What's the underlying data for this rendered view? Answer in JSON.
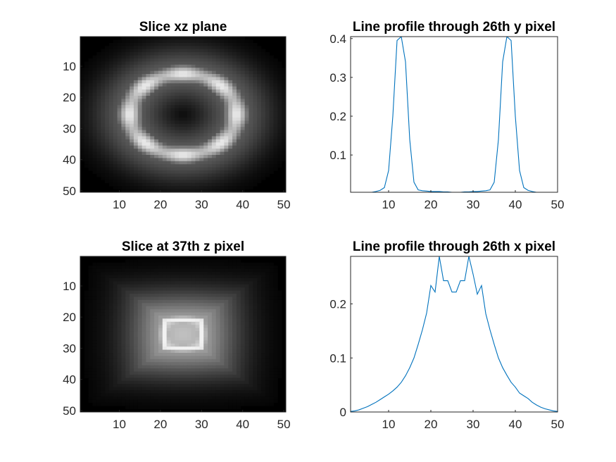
{
  "chart_data": [
    {
      "id": "img1",
      "type": "heatmap",
      "title": "Slice xz plane",
      "colormap": "gray",
      "xlim": [
        0.5,
        50.5
      ],
      "ylim": [
        0.5,
        50.5
      ],
      "y_reversed": true,
      "xticks": [
        10,
        20,
        30,
        40,
        50
      ],
      "yticks": [
        10,
        20,
        30,
        40,
        50
      ],
      "pattern": {
        "kind": "ring",
        "center": [
          25.5,
          25.5
        ],
        "radius_x": 13,
        "radius_z": 13,
        "ring_width": 2.2,
        "ring_peak": 0.92,
        "halo_width": 6.5,
        "halo_level": 0.38
      }
    },
    {
      "id": "line1",
      "type": "line",
      "title": "Line profile through 26th y pixel",
      "xlim": [
        1,
        50
      ],
      "ylim": [
        0.004,
        0.405
      ],
      "xticks": [
        10,
        20,
        30,
        40,
        50
      ],
      "yticks": [
        0.1,
        0.2,
        0.3,
        0.4
      ],
      "series": [
        {
          "color": "#0072bd",
          "x": [
            1,
            2,
            3,
            4,
            5,
            6,
            7,
            8,
            9,
            10,
            11,
            12,
            13,
            14,
            15,
            16,
            17,
            18,
            19,
            20,
            21,
            22,
            23,
            24,
            25,
            26,
            27,
            28,
            29,
            30,
            31,
            32,
            33,
            34,
            35,
            36,
            37,
            38,
            39,
            40,
            41,
            42,
            43,
            44,
            45,
            46,
            47,
            48,
            49,
            50
          ],
          "values": [
            0.003,
            0.003,
            0.003,
            0.003,
            0.003,
            0.004,
            0.006,
            0.009,
            0.016,
            0.06,
            0.2,
            0.395,
            0.405,
            0.34,
            0.14,
            0.03,
            0.01,
            0.008,
            0.007,
            0.006,
            0.006,
            0.006,
            0.005,
            0.005,
            0.004,
            0.004,
            0.004,
            0.005,
            0.005,
            0.006,
            0.006,
            0.007,
            0.008,
            0.01,
            0.03,
            0.14,
            0.34,
            0.405,
            0.395,
            0.2,
            0.06,
            0.016,
            0.009,
            0.006,
            0.004,
            0.003,
            0.003,
            0.003,
            0.003,
            0.003
          ]
        }
      ]
    },
    {
      "id": "img2",
      "type": "heatmap",
      "title": "Slice at 37th z pixel",
      "colormap": "gray",
      "xlim": [
        0.5,
        50.5
      ],
      "ylim": [
        0.5,
        50.5
      ],
      "y_reversed": true,
      "xticks": [
        10,
        20,
        30,
        40,
        50
      ],
      "yticks": [
        10,
        20,
        30,
        40,
        50
      ],
      "pattern": {
        "kind": "square-ring",
        "center": [
          25.5,
          25.5
        ],
        "ring_radius": 4.5,
        "ring_width": 1.3,
        "ring_peak": 0.95,
        "core_level": 0.7,
        "halo_width": 9,
        "halo_level": 0.75
      }
    },
    {
      "id": "line2",
      "type": "line",
      "title": "Line profile through 26th x pixel",
      "xlim": [
        1,
        50
      ],
      "ylim": [
        0,
        0.288
      ],
      "xticks": [
        10,
        20,
        30,
        40,
        50
      ],
      "yticks": [
        0,
        0.1,
        0.2
      ],
      "series": [
        {
          "color": "#0072bd",
          "x": [
            1,
            2,
            3,
            4,
            5,
            6,
            7,
            8,
            9,
            10,
            11,
            12,
            13,
            14,
            15,
            16,
            17,
            18,
            19,
            20,
            21,
            22,
            23,
            24,
            25,
            26,
            27,
            28,
            29,
            30,
            31,
            32,
            33,
            34,
            35,
            36,
            37,
            38,
            39,
            40,
            41,
            42,
            43,
            44,
            45,
            46,
            47,
            48,
            49,
            50
          ],
          "values": [
            0.001,
            0.002,
            0.004,
            0.007,
            0.01,
            0.014,
            0.018,
            0.023,
            0.028,
            0.033,
            0.039,
            0.046,
            0.055,
            0.067,
            0.082,
            0.1,
            0.125,
            0.152,
            0.183,
            0.234,
            0.222,
            0.288,
            0.243,
            0.243,
            0.222,
            0.222,
            0.243,
            0.243,
            0.288,
            0.255,
            0.218,
            0.234,
            0.182,
            0.152,
            0.125,
            0.1,
            0.082,
            0.068,
            0.055,
            0.046,
            0.035,
            0.03,
            0.025,
            0.018,
            0.013,
            0.009,
            0.006,
            0.004,
            0.002,
            0.001
          ]
        }
      ]
    }
  ]
}
